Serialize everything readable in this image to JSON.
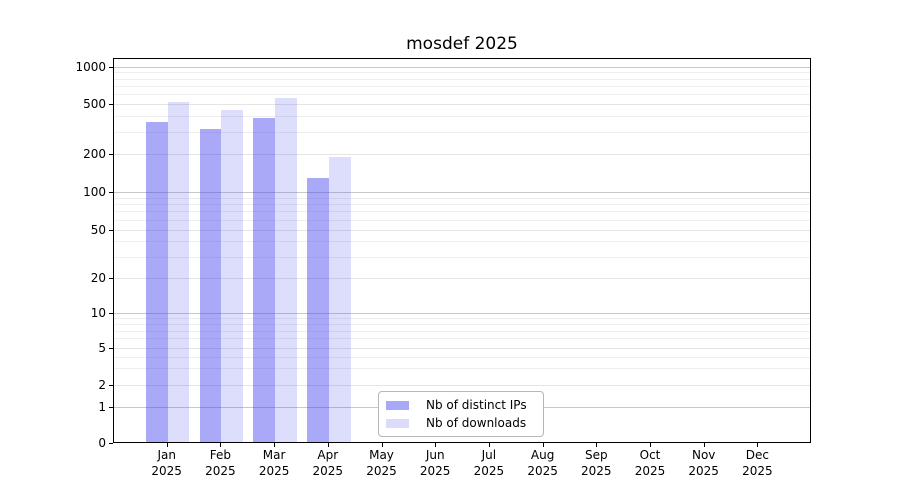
{
  "chart_data": {
    "type": "bar",
    "title": "mosdef 2025",
    "xlabel": "",
    "ylabel": "",
    "categories": [
      "Jan",
      "Feb",
      "Mar",
      "Apr",
      "May",
      "Jun",
      "Jul",
      "Aug",
      "Sep",
      "Oct",
      "Nov",
      "Dec"
    ],
    "category_year_line": "2025",
    "series": [
      {
        "name": "Nb of distinct IPs",
        "fill": "rgba(64,64,240,0.45)",
        "flat_color": "#a8a8f8",
        "values": [
          360,
          320,
          390,
          130,
          null,
          null,
          null,
          null,
          null,
          null,
          null,
          null
        ]
      },
      {
        "name": "Nb of downloads",
        "fill": "rgba(64,64,240,0.18)",
        "flat_color": "#dcdcfa",
        "values": [
          520,
          450,
          560,
          190,
          null,
          null,
          null,
          null,
          null,
          null,
          null,
          null
        ]
      }
    ],
    "y_axis": {
      "scale": "symlog",
      "ticks": [
        0,
        1,
        2,
        5,
        10,
        20,
        50,
        100,
        200,
        500,
        1000
      ],
      "minor_ticks": [
        3,
        4,
        6,
        7,
        8,
        9,
        30,
        40,
        60,
        70,
        80,
        90,
        300,
        400,
        600,
        700,
        800,
        900
      ],
      "emphasized_gridlines": [
        1,
        10,
        100,
        1000
      ],
      "range": [
        0,
        1150
      ]
    },
    "grid": {
      "emphasized_color": "#c8c8c8",
      "labeled_color": "#e4e4e4",
      "minor_color": "#eeeeee",
      "vertical": false
    },
    "legend": {
      "position": "lower-center-inside",
      "entries": [
        "Nb of distinct IPs",
        "Nb of downloads"
      ]
    }
  }
}
